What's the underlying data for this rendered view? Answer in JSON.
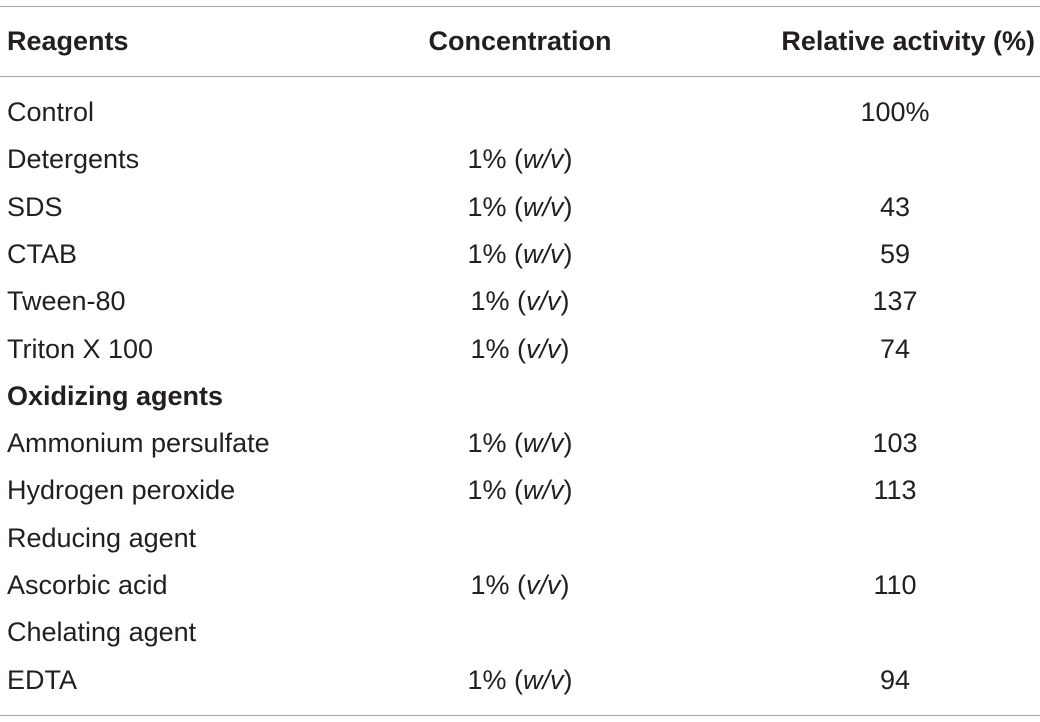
{
  "table": {
    "headers": {
      "reagents": "Reagents",
      "concentration": "Concentration",
      "activity": "Relative activity (%)"
    },
    "rows": [
      {
        "reagent": "Control",
        "conc_prefix": "",
        "conc_unit": "",
        "conc_suffix": "",
        "activity": "100%",
        "bold": false
      },
      {
        "reagent": "Detergents",
        "conc_prefix": "1% (",
        "conc_unit": "w/v",
        "conc_suffix": ")",
        "activity": "",
        "bold": false
      },
      {
        "reagent": "SDS",
        "conc_prefix": "1% (",
        "conc_unit": "w/v",
        "conc_suffix": ")",
        "activity": "43",
        "bold": false
      },
      {
        "reagent": "CTAB",
        "conc_prefix": "1% (",
        "conc_unit": "w/v",
        "conc_suffix": ")",
        "activity": "59",
        "bold": false
      },
      {
        "reagent": "Tween-80",
        "conc_prefix": "1% (",
        "conc_unit": "v/v",
        "conc_suffix": ")",
        "activity": "137",
        "bold": false
      },
      {
        "reagent": "Triton X 100",
        "conc_prefix": "1% (",
        "conc_unit": "v/v",
        "conc_suffix": ")",
        "activity": "74",
        "bold": false
      },
      {
        "reagent": "Oxidizing agents",
        "conc_prefix": "",
        "conc_unit": "",
        "conc_suffix": "",
        "activity": "",
        "bold": true
      },
      {
        "reagent": "Ammonium persulfate",
        "conc_prefix": "1% (",
        "conc_unit": "w/v",
        "conc_suffix": ")",
        "activity": "103",
        "bold": false
      },
      {
        "reagent": "Hydrogen peroxide",
        "conc_prefix": "1% (",
        "conc_unit": "w/v",
        "conc_suffix": ")",
        "activity": "113",
        "bold": false
      },
      {
        "reagent": "Reducing agent",
        "conc_prefix": "",
        "conc_unit": "",
        "conc_suffix": "",
        "activity": "",
        "bold": false
      },
      {
        "reagent": "Ascorbic acid",
        "conc_prefix": "1% (",
        "conc_unit": "v/v",
        "conc_suffix": ")",
        "activity": "110",
        "bold": false
      },
      {
        "reagent": "Chelating agent",
        "conc_prefix": "",
        "conc_unit": "",
        "conc_suffix": "",
        "activity": "",
        "bold": false
      },
      {
        "reagent": "EDTA",
        "conc_prefix": "1% (",
        "conc_unit": "w/v",
        "conc_suffix": ")",
        "activity": "94",
        "bold": false
      }
    ]
  }
}
